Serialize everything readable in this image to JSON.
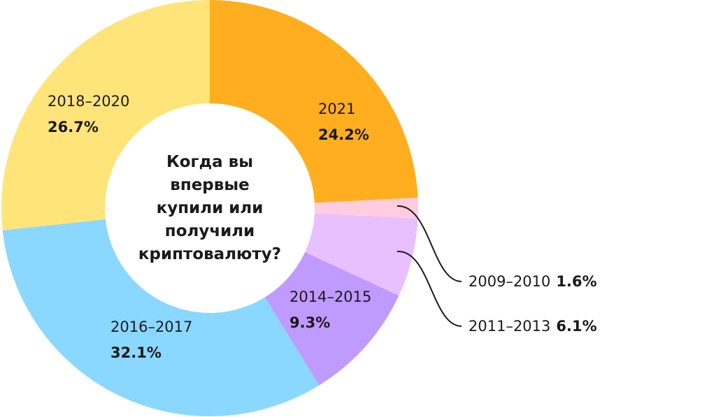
{
  "chart_data": {
    "type": "donut",
    "title": "Когда вы впервые купили или получили криптовалюту?",
    "categories": [
      "2021",
      "2009–2010",
      "2011–2013",
      "2014–2015",
      "2016–2017",
      "2018–2020"
    ],
    "values": [
      24.2,
      1.6,
      6.1,
      9.3,
      32.1,
      26.7
    ],
    "value_labels": [
      "24.2%",
      "1.6%",
      "6.1%",
      "9.3%",
      "32.1%",
      "26.7%"
    ],
    "colors": [
      "#ffae1f",
      "#ffcce0",
      "#e8c0ff",
      "#bf9aff",
      "#8ad8ff",
      "#ffe47a"
    ]
  }
}
